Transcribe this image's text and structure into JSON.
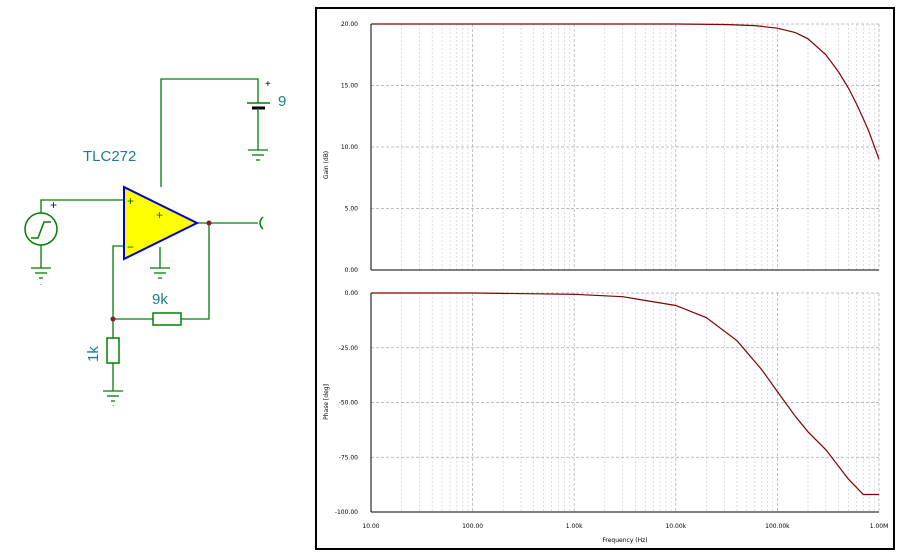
{
  "schematic": {
    "opamp_label": "TLC272",
    "battery_label": "9",
    "battery_plus": "+",
    "source_plus": "+",
    "opamp_plus_in": "+",
    "opamp_minus_in": "−",
    "opamp_plus_supply": "+",
    "feedback_resistor": "9k",
    "ground_resistor": "1k",
    "colors": {
      "wire": "#008000",
      "opamp_fill": "#ffff00",
      "opamp_stroke": "#0000cc",
      "label": "#1a7f8a",
      "node": "#802020"
    }
  },
  "chart_data": [
    {
      "type": "line",
      "x_scale": "log",
      "xlim": [
        10,
        1000000
      ],
      "ylim": [
        0,
        20
      ],
      "ylabel": "Gain (dB)",
      "xlabel": "",
      "yticks": [
        "20.00",
        "15.00",
        "10.00",
        "5.00",
        "0.00"
      ],
      "grid": true,
      "series": [
        {
          "color": "#800000",
          "x": [
            10,
            100,
            1000,
            10000,
            30000,
            60000,
            100000,
            150000,
            200000,
            300000,
            400000,
            500000,
            600000,
            700000,
            800000,
            1000000
          ],
          "values": [
            20,
            20,
            20,
            20,
            19.96,
            19.87,
            19.66,
            19.3,
            18.8,
            17.5,
            16.1,
            14.8,
            13.5,
            12.3,
            11.2,
            9.0
          ]
        }
      ]
    },
    {
      "type": "line",
      "x_scale": "log",
      "xlim": [
        10,
        1000000
      ],
      "ylim": [
        -100,
        0
      ],
      "ylabel": "Phase [deg]",
      "xlabel": "Frequency (Hz)",
      "xticks": [
        "10.00",
        "100.00",
        "1.00k",
        "10.00k",
        "100.00k",
        "1.00M"
      ],
      "yticks": [
        "0.00",
        "-25.00",
        "-50.00",
        "-75.00",
        "-100.00"
      ],
      "grid": true,
      "series": [
        {
          "color": "#800000",
          "x": [
            10,
            100,
            1000,
            3000,
            10000,
            20000,
            40000,
            70000,
            100000,
            150000,
            200000,
            300000,
            500000,
            700000,
            1000000
          ],
          "values": [
            0,
            0,
            -0.6,
            -1.7,
            -5.7,
            -11.3,
            -21.8,
            -35,
            -45,
            -56.3,
            -63.4,
            -71.6,
            -85,
            -92,
            -92
          ]
        }
      ]
    }
  ]
}
